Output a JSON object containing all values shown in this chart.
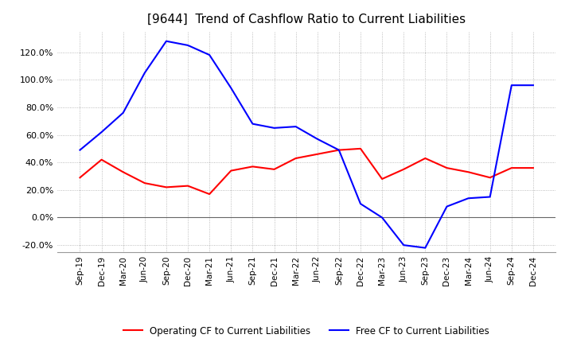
{
  "title": "[9644]  Trend of Cashflow Ratio to Current Liabilities",
  "x_labels": [
    "Sep-19",
    "Dec-19",
    "Mar-20",
    "Jun-20",
    "Sep-20",
    "Dec-20",
    "Mar-21",
    "Jun-21",
    "Sep-21",
    "Dec-21",
    "Mar-22",
    "Jun-22",
    "Sep-22",
    "Dec-22",
    "Mar-23",
    "Jun-23",
    "Sep-23",
    "Dec-23",
    "Mar-24",
    "Jun-24",
    "Sep-24",
    "Dec-24"
  ],
  "operating_cf": [
    0.29,
    0.42,
    0.33,
    0.25,
    0.22,
    0.23,
    0.17,
    0.34,
    0.37,
    0.35,
    0.43,
    0.46,
    0.49,
    0.5,
    0.28,
    0.35,
    0.43,
    0.36,
    0.33,
    0.29,
    0.36,
    0.36
  ],
  "free_cf": [
    0.49,
    0.62,
    0.76,
    1.05,
    1.28,
    1.25,
    1.18,
    0.94,
    0.68,
    0.65,
    0.66,
    0.57,
    0.49,
    0.1,
    0.0,
    -0.2,
    -0.22,
    0.08,
    0.14,
    0.15,
    0.96,
    0.96
  ],
  "operating_color": "#ff0000",
  "free_color": "#0000ff",
  "ylim": [
    -0.25,
    1.35
  ],
  "yticks": [
    -0.2,
    0.0,
    0.2,
    0.4,
    0.6,
    0.8,
    1.0,
    1.2
  ],
  "background_color": "#ffffff",
  "grid_color": "#aaaaaa",
  "title_fontsize": 11,
  "legend_labels": [
    "Operating CF to Current Liabilities",
    "Free CF to Current Liabilities"
  ]
}
